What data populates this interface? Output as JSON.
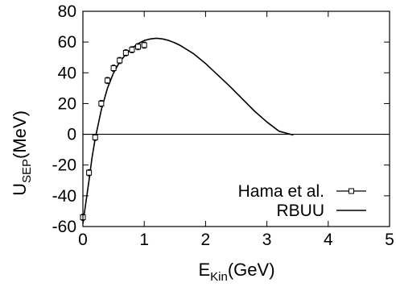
{
  "chart_data": {
    "type": "scatter",
    "xlabel_main": "E",
    "xlabel_sub": "Kin",
    "xlabel_unit": "(GeV)",
    "ylabel_main": "U",
    "ylabel_sub": "SEP",
    "ylabel_unit": "(MeV)",
    "xlim": [
      0,
      5
    ],
    "ylim": [
      -60,
      80
    ],
    "xticks": [
      0,
      1,
      2,
      3,
      4,
      5
    ],
    "yticks": [
      -60,
      -40,
      -20,
      0,
      20,
      40,
      60,
      80
    ],
    "zero_line": true,
    "legend_position": "bottom-right",
    "series": [
      {
        "name": "Hama et al.",
        "style": "open-square-markers-with-errorbars",
        "x": [
          0.0,
          0.1,
          0.2,
          0.3,
          0.4,
          0.5,
          0.6,
          0.7,
          0.8,
          0.9,
          1.0
        ],
        "y": [
          -54,
          -25,
          -2,
          20,
          35,
          43,
          48,
          53,
          55,
          57,
          58
        ],
        "err": [
          2,
          2,
          2,
          2,
          2,
          2,
          2,
          2,
          2,
          2,
          2
        ]
      },
      {
        "name": "RBUU",
        "style": "solid-line",
        "x": [
          0.0,
          0.05,
          0.1,
          0.15,
          0.2,
          0.3,
          0.4,
          0.5,
          0.6,
          0.7,
          0.8,
          0.9,
          1.0,
          1.1,
          1.2,
          1.3,
          1.4,
          1.5,
          1.6,
          1.8,
          2.0,
          2.2,
          2.4,
          2.6,
          2.8,
          3.0,
          3.2,
          3.43
        ],
        "y": [
          -58,
          -44,
          -30,
          -15,
          -3,
          16,
          30,
          40,
          47,
          52,
          56,
          59,
          61,
          62,
          62.5,
          62,
          61,
          59.5,
          57.5,
          52.5,
          46,
          38.5,
          31,
          23,
          15,
          8,
          2,
          -0.5
        ]
      }
    ]
  }
}
